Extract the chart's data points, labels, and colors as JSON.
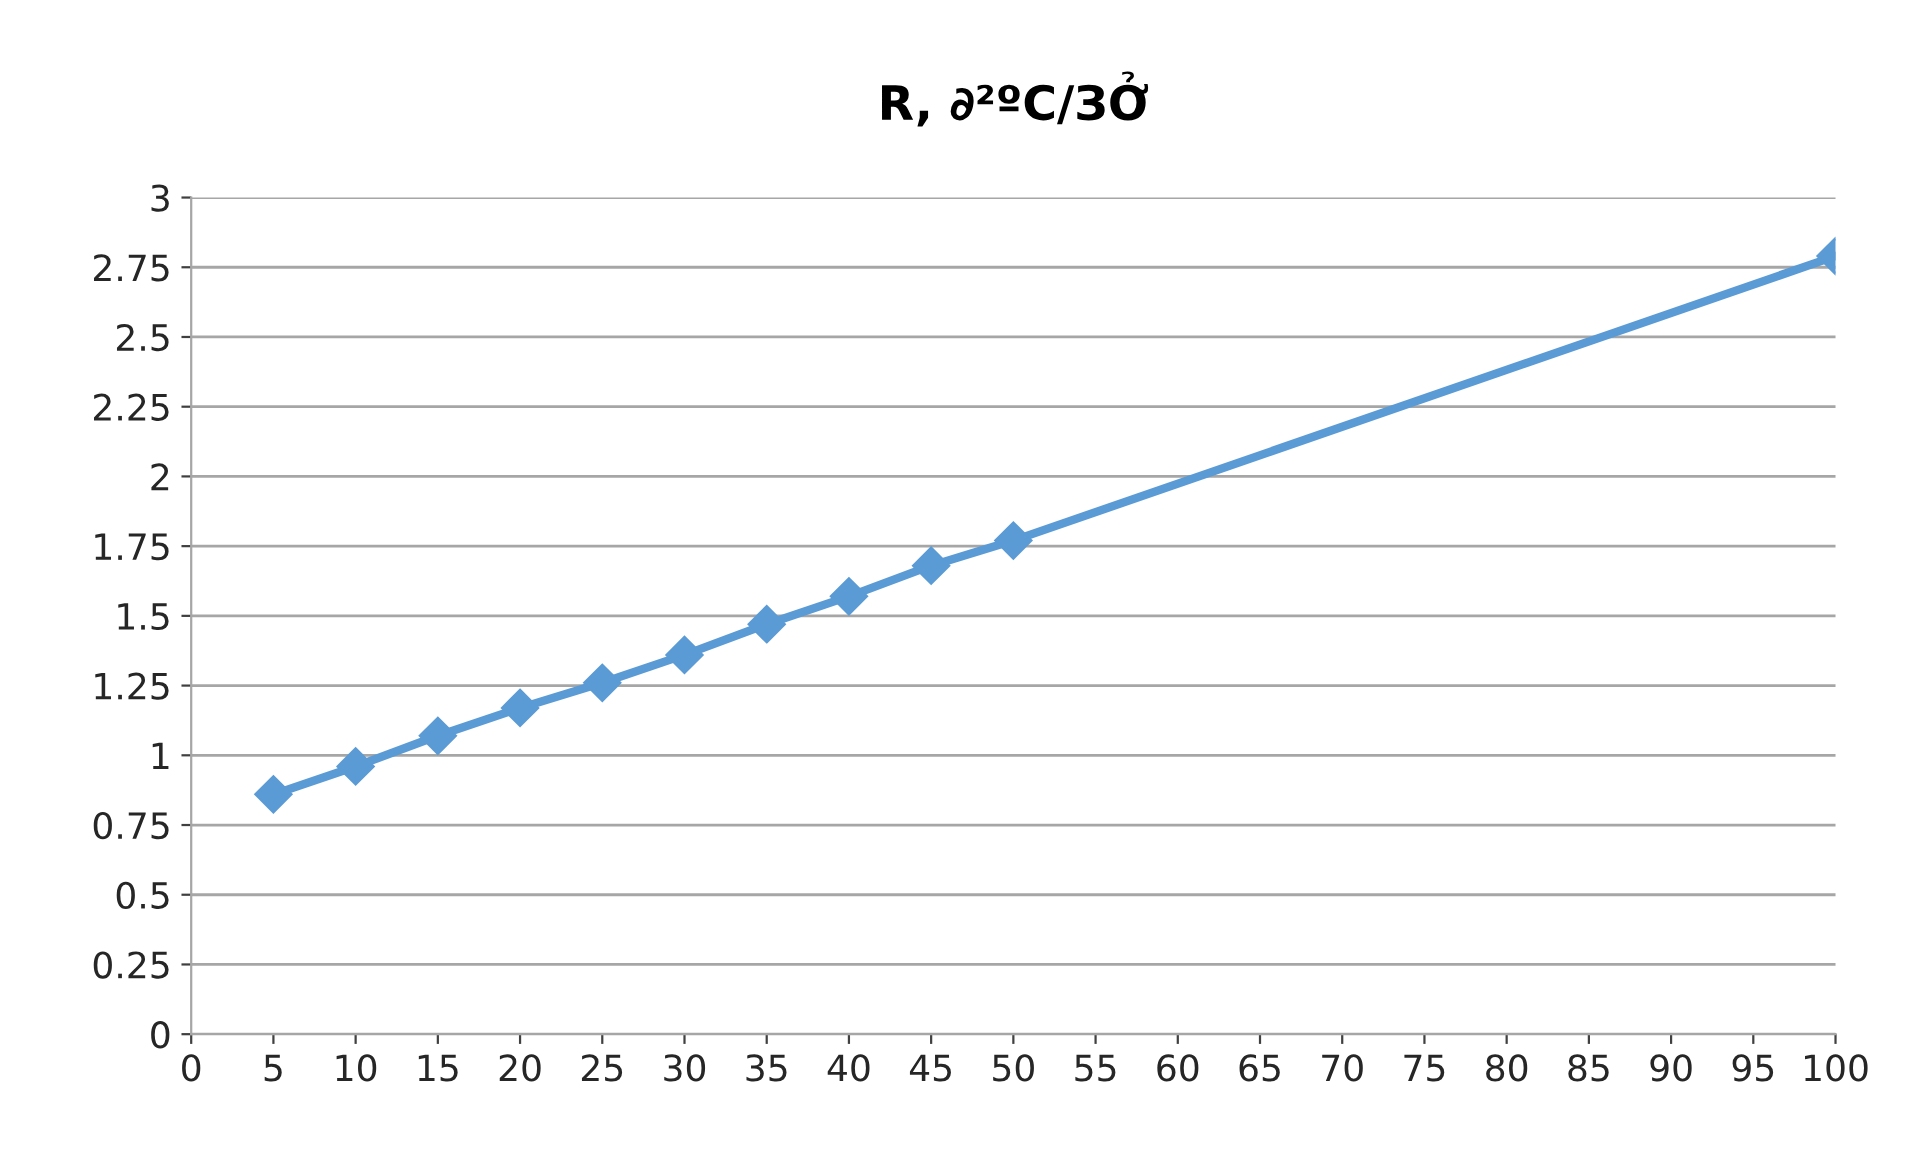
{
  "chart_data": {
    "type": "line",
    "title": "R, ∂²ºC/ЗỞ",
    "x": [
      5,
      10,
      15,
      20,
      25,
      30,
      35,
      40,
      45,
      50,
      100
    ],
    "series": [
      {
        "color": "#5b9bd5",
        "values": [
          0.86,
          0.96,
          1.07,
          1.17,
          1.26,
          1.36,
          1.47,
          1.57,
          1.68,
          1.77,
          2.79
        ]
      }
    ],
    "xlim": [
      0,
      100
    ],
    "xticks": [
      0,
      5,
      10,
      15,
      20,
      25,
      30,
      35,
      40,
      45,
      50,
      55,
      60,
      65,
      70,
      75,
      80,
      85,
      90,
      95,
      100
    ],
    "ylim": [
      0,
      3
    ],
    "yticks": [
      0,
      0.25,
      0.5,
      0.75,
      1,
      1.25,
      1.5,
      1.75,
      2,
      2.25,
      2.5,
      2.75,
      3
    ],
    "grid": "y",
    "legend": false,
    "marker": "diamond",
    "line_style": "solid"
  }
}
